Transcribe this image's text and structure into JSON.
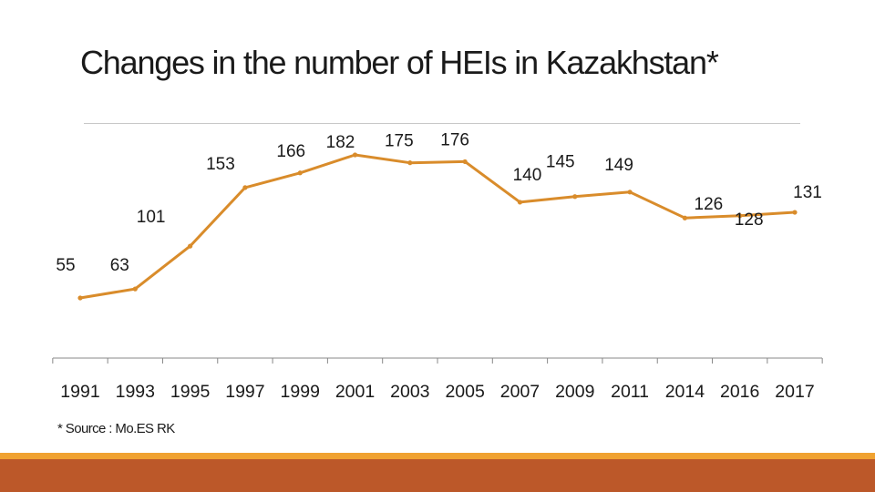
{
  "title": "Changes in the number of HEIs in Kazakhstan*",
  "footnote": "* Source : Mo.ES RK",
  "colors": {
    "line": "#D98C2B",
    "top_band": "#F0A231",
    "bottom_band": "#BC5829",
    "axis": "#888888",
    "title_rule": "#C8C8C8"
  },
  "chart_data": {
    "type": "line",
    "title": "Changes in the number of HEIs in Kazakhstan*",
    "xlabel": "",
    "ylabel": "",
    "categories": [
      "1991",
      "1993",
      "1995",
      "1997",
      "1999",
      "2001",
      "2003",
      "2005",
      "2007",
      "2009",
      "2011",
      "2014",
      "2016",
      "2017"
    ],
    "series": [
      {
        "values": [
          55,
          63,
          101,
          153,
          166,
          182,
          175,
          176,
          140,
          145,
          149,
          126,
          128,
          131
        ],
        "data_labels": [
          "55",
          "63",
          "101",
          "153",
          "166",
          "182",
          "175",
          "176",
          "140",
          "145",
          "149",
          "126",
          "128",
          "131"
        ]
      }
    ],
    "ylim": [
      40,
      190
    ],
    "grid": false,
    "legend": "none"
  }
}
